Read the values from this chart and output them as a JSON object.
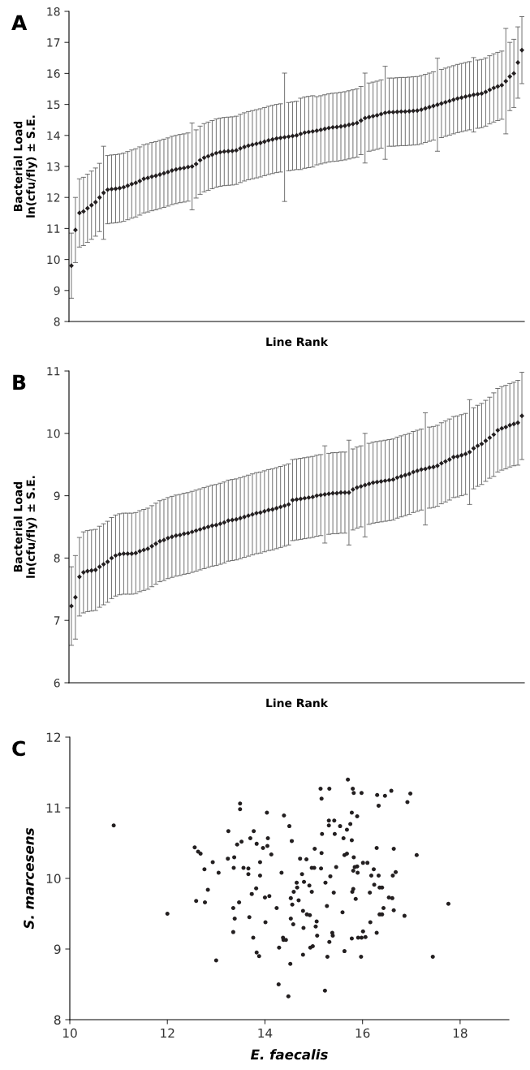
{
  "chart_data": [
    {
      "type": "scatter",
      "title": "A",
      "xlabel": "Line Rank",
      "ylabel": "Bacterial Load\nln(cfu/fly) ± S.E.",
      "marker": "diamond",
      "color": "#231f20",
      "categories": [
        null,
        null,
        null,
        null,
        null,
        null,
        null,
        null,
        null,
        null,
        null,
        null,
        null,
        null,
        null,
        null,
        null,
        null,
        null,
        null,
        null,
        null,
        null,
        null,
        null,
        null,
        null,
        null,
        null,
        null,
        null,
        null,
        null,
        null,
        null,
        null,
        null,
        null,
        null,
        null,
        null,
        null,
        null,
        null,
        null,
        null,
        null,
        null,
        null,
        null,
        null,
        null,
        null,
        null,
        null,
        null,
        null,
        null,
        null,
        null,
        null,
        null,
        null,
        null,
        null,
        null,
        null,
        null,
        null,
        null,
        null,
        null,
        null,
        null,
        null,
        null,
        null,
        null,
        null,
        null,
        null,
        null,
        null,
        null,
        null,
        null,
        null,
        null,
        null,
        null,
        null,
        null,
        null,
        null,
        null,
        null,
        null,
        null,
        null,
        null,
        null,
        null,
        null,
        null,
        null,
        null,
        null,
        null,
        null,
        null,
        null,
        null,
        null
      ],
      "values": [
        9.8,
        10.95,
        11.5,
        11.55,
        11.65,
        11.75,
        11.85,
        12.0,
        12.15,
        12.25,
        12.27,
        12.28,
        12.3,
        12.33,
        12.38,
        12.43,
        12.47,
        12.53,
        12.6,
        12.63,
        12.67,
        12.7,
        12.74,
        12.78,
        12.82,
        12.87,
        12.9,
        12.93,
        12.95,
        12.98,
        13.0,
        13.08,
        13.2,
        13.28,
        13.33,
        13.38,
        13.43,
        13.46,
        13.48,
        13.49,
        13.5,
        13.52,
        13.58,
        13.63,
        13.67,
        13.7,
        13.73,
        13.76,
        13.8,
        13.84,
        13.87,
        13.9,
        13.92,
        13.94,
        13.96,
        13.98,
        14.0,
        14.05,
        14.09,
        14.11,
        14.13,
        14.15,
        14.18,
        14.21,
        14.24,
        14.26,
        14.27,
        14.29,
        14.31,
        14.34,
        14.37,
        14.4,
        14.48,
        14.56,
        14.59,
        14.62,
        14.65,
        14.69,
        14.73,
        14.75,
        14.75,
        14.76,
        14.77,
        14.77,
        14.78,
        14.79,
        14.8,
        14.83,
        14.87,
        14.91,
        14.95,
        14.99,
        15.03,
        15.07,
        15.11,
        15.15,
        15.19,
        15.22,
        15.25,
        15.28,
        15.31,
        15.33,
        15.35,
        15.4,
        15.47,
        15.53,
        15.58,
        15.62,
        15.75,
        15.9,
        16.0,
        16.35,
        16.75
      ],
      "errors": [
        1.05,
        1.05,
        1.1,
        1.1,
        1.1,
        1.1,
        1.1,
        1.1,
        1.5,
        1.1,
        1.1,
        1.1,
        1.1,
        1.1,
        1.1,
        1.1,
        1.1,
        1.1,
        1.1,
        1.1,
        1.1,
        1.1,
        1.1,
        1.1,
        1.1,
        1.1,
        1.1,
        1.1,
        1.1,
        1.1,
        1.4,
        1.1,
        1.1,
        1.1,
        1.1,
        1.1,
        1.1,
        1.1,
        1.1,
        1.1,
        1.1,
        1.1,
        1.1,
        1.1,
        1.1,
        1.1,
        1.1,
        1.1,
        1.1,
        1.1,
        1.1,
        1.1,
        1.1,
        2.07,
        1.1,
        1.1,
        1.1,
        1.15,
        1.15,
        1.15,
        1.15,
        1.1,
        1.1,
        1.1,
        1.1,
        1.1,
        1.1,
        1.1,
        1.1,
        1.1,
        1.1,
        1.1,
        1.1,
        1.45,
        1.1,
        1.1,
        1.1,
        1.1,
        1.5,
        1.1,
        1.1,
        1.1,
        1.1,
        1.1,
        1.1,
        1.1,
        1.1,
        1.1,
        1.1,
        1.1,
        1.1,
        1.5,
        1.1,
        1.1,
        1.1,
        1.1,
        1.1,
        1.1,
        1.1,
        1.1,
        1.2,
        1.1,
        1.1,
        1.1,
        1.1,
        1.1,
        1.1,
        1.1,
        1.7,
        1.1,
        1.1,
        1.15,
        1.08
      ],
      "ylim": [
        8,
        18
      ],
      "yticks": [
        8,
        9,
        10,
        11,
        12,
        13,
        14,
        15,
        16,
        17,
        18
      ]
    },
    {
      "type": "scatter",
      "title": "B",
      "xlabel": "Line Rank",
      "ylabel": "Bacterial Load\nln(cfu/fly) ± S.E.",
      "marker": "diamond",
      "color": "#231f20",
      "categories": [
        null,
        null,
        null,
        null,
        null,
        null,
        null,
        null,
        null,
        null,
        null,
        null,
        null,
        null,
        null,
        null,
        null,
        null,
        null,
        null,
        null,
        null,
        null,
        null,
        null,
        null,
        null,
        null,
        null,
        null,
        null,
        null,
        null,
        null,
        null,
        null,
        null,
        null,
        null,
        null,
        null,
        null,
        null,
        null,
        null,
        null,
        null,
        null,
        null,
        null,
        null,
        null,
        null,
        null,
        null,
        null,
        null,
        null,
        null,
        null,
        null,
        null,
        null,
        null,
        null,
        null,
        null,
        null,
        null,
        null,
        null,
        null,
        null,
        null,
        null,
        null,
        null,
        null,
        null,
        null,
        null,
        null,
        null,
        null,
        null,
        null,
        null,
        null,
        null,
        null,
        null,
        null,
        null,
        null,
        null,
        null,
        null,
        null,
        null,
        null,
        null,
        null,
        null,
        null,
        null,
        null,
        null,
        null,
        null,
        null,
        null,
        null,
        null
      ],
      "values": [
        7.23,
        7.37,
        7.7,
        7.77,
        7.79,
        7.8,
        7.81,
        7.86,
        7.9,
        7.94,
        8.0,
        8.04,
        8.06,
        8.07,
        8.07,
        8.07,
        8.08,
        8.11,
        8.13,
        8.15,
        8.19,
        8.23,
        8.27,
        8.29,
        8.32,
        8.34,
        8.36,
        8.37,
        8.39,
        8.4,
        8.42,
        8.44,
        8.46,
        8.48,
        8.5,
        8.52,
        8.53,
        8.55,
        8.57,
        8.6,
        8.61,
        8.62,
        8.64,
        8.66,
        8.68,
        8.7,
        8.72,
        8.73,
        8.75,
        8.77,
        8.78,
        8.8,
        8.82,
        8.84,
        8.86,
        8.93,
        8.94,
        8.95,
        8.96,
        8.97,
        8.98,
        9.0,
        9.01,
        9.02,
        9.03,
        9.04,
        9.04,
        9.05,
        9.05,
        9.05,
        9.1,
        9.13,
        9.15,
        9.17,
        9.19,
        9.21,
        9.22,
        9.23,
        9.24,
        9.25,
        9.26,
        9.29,
        9.31,
        9.33,
        9.35,
        9.38,
        9.4,
        9.42,
        9.43,
        9.45,
        9.46,
        9.48,
        9.52,
        9.55,
        9.58,
        9.62,
        9.63,
        9.65,
        9.67,
        9.7,
        9.76,
        9.8,
        9.83,
        9.88,
        9.93,
        9.98,
        10.05,
        10.08,
        10.1,
        10.13,
        10.15,
        10.17,
        10.28
      ],
      "errors": [
        0.63,
        0.67,
        0.63,
        0.65,
        0.65,
        0.65,
        0.65,
        0.65,
        0.65,
        0.65,
        0.65,
        0.65,
        0.65,
        0.65,
        0.65,
        0.65,
        0.65,
        0.65,
        0.65,
        0.65,
        0.65,
        0.65,
        0.65,
        0.65,
        0.65,
        0.65,
        0.65,
        0.65,
        0.65,
        0.65,
        0.65,
        0.65,
        0.65,
        0.65,
        0.65,
        0.65,
        0.65,
        0.65,
        0.65,
        0.65,
        0.65,
        0.65,
        0.65,
        0.65,
        0.65,
        0.65,
        0.65,
        0.65,
        0.65,
        0.65,
        0.65,
        0.65,
        0.65,
        0.65,
        0.65,
        0.65,
        0.65,
        0.65,
        0.65,
        0.65,
        0.65,
        0.65,
        0.65,
        0.78,
        0.65,
        0.65,
        0.65,
        0.65,
        0.65,
        0.84,
        0.65,
        0.65,
        0.65,
        0.83,
        0.65,
        0.65,
        0.65,
        0.65,
        0.65,
        0.65,
        0.65,
        0.65,
        0.65,
        0.65,
        0.65,
        0.65,
        0.65,
        0.65,
        0.9,
        0.65,
        0.65,
        0.65,
        0.65,
        0.65,
        0.65,
        0.65,
        0.65,
        0.65,
        0.65,
        0.84,
        0.65,
        0.65,
        0.65,
        0.65,
        0.65,
        0.67,
        0.67,
        0.67,
        0.67,
        0.67,
        0.67,
        0.68,
        0.7
      ],
      "ylim": [
        6,
        11
      ],
      "yticks": [
        6,
        7,
        8,
        9,
        10,
        11
      ]
    },
    {
      "type": "scatter",
      "title": "C",
      "xlabel": "E. faecalis",
      "ylabel": "S. marcesens",
      "marker": "circle",
      "color": "#231f20",
      "x": [
        10.9,
        12.0,
        13.0,
        13.49,
        13.49,
        14.04,
        14.39,
        14.5,
        13.25,
        13.77,
        13.7,
        14.06,
        14.55,
        13.43,
        13.52,
        13.83,
        13.96,
        14.05,
        14.13,
        12.56,
        12.63,
        12.68,
        12.93,
        13.24,
        13.37,
        14.72,
        14.85,
        12.76,
        13.05,
        13.36,
        13.56,
        13.66,
        13.66,
        13.9,
        13.9,
        14.34,
        14.76,
        14.65,
        14.8,
        14.66,
        14.59,
        12.83,
        13.82,
        13.73,
        14.0,
        14.09,
        14.53,
        14.69,
        14.56,
        12.59,
        12.77,
        13.47,
        13.35,
        14.24,
        14.78,
        14.86,
        13.38,
        13.68,
        14.01,
        14.53,
        14.58,
        14.79,
        13.35,
        13.76,
        14.37,
        14.38,
        14.43,
        14.29,
        13.83,
        13.88,
        14.78,
        14.52,
        14.92,
        15.7,
        15.14,
        15.32,
        15.8,
        15.82,
        15.98,
        16.3,
        16.46,
        16.59,
        16.98,
        16.92,
        16.33,
        15.16,
        15.78,
        15.89,
        15.31,
        15.42,
        15.31,
        15.54,
        15.75,
        15.68,
        15.17,
        15.43,
        15.61,
        15.78,
        15.02,
        15.16,
        15.63,
        15.68,
        15.82,
        16.29,
        16.64,
        17.11,
        14.96,
        15.01,
        15.15,
        15.46,
        15.84,
        15.89,
        15.81,
        15.9,
        16.01,
        16.1,
        16.23,
        16.18,
        16.33,
        16.62,
        16.68,
        15.34,
        15.24,
        14.91,
        14.96,
        15.41,
        15.81,
        15.79,
        16.24,
        16.35,
        16.4,
        16.15,
        15.86,
        16.54,
        16.61,
        15.27,
        16.43,
        16.64,
        16.35,
        16.4,
        16.86,
        17.76,
        15.59,
        15.06,
        15.04,
        16.16,
        15.38,
        15.39,
        15.07,
        16.01,
        16.29,
        15.78,
        15.91,
        15.98,
        16.06,
        15.32,
        14.93,
        14.98,
        15.63,
        15.28,
        15.97,
        17.44,
        14.28,
        14.48,
        15.23
      ],
      "values": [
        10.75,
        9.5,
        8.84,
        11.06,
        10.98,
        10.93,
        10.89,
        10.74,
        10.67,
        10.67,
        10.57,
        10.57,
        10.53,
        10.48,
        10.52,
        10.49,
        10.43,
        10.46,
        10.34,
        10.44,
        10.38,
        10.35,
        10.23,
        10.28,
        10.3,
        10.28,
        10.27,
        10.13,
        10.08,
        10.15,
        10.15,
        10.14,
        10.06,
        10.23,
        10.04,
        10.08,
        10.06,
        9.94,
        9.95,
        9.87,
        9.81,
        9.84,
        9.86,
        9.78,
        9.73,
        9.75,
        9.72,
        9.69,
        9.63,
        9.68,
        9.66,
        9.66,
        9.58,
        9.58,
        9.54,
        9.49,
        9.43,
        9.45,
        9.38,
        9.43,
        9.35,
        9.3,
        9.24,
        9.16,
        9.16,
        9.13,
        9.13,
        9.02,
        8.95,
        8.9,
        8.92,
        8.79,
        9.48,
        11.4,
        11.27,
        11.27,
        11.27,
        11.21,
        11.21,
        11.18,
        11.17,
        11.24,
        11.2,
        11.08,
        11.03,
        11.13,
        10.93,
        10.88,
        10.82,
        10.82,
        10.75,
        10.74,
        10.77,
        10.69,
        10.63,
        10.63,
        10.57,
        10.54,
        10.42,
        10.36,
        10.33,
        10.35,
        10.3,
        10.43,
        10.42,
        10.33,
        10.15,
        10.15,
        10.14,
        10.16,
        10.16,
        10.17,
        10.11,
        10.08,
        10.22,
        10.22,
        10.13,
        10.04,
        10.04,
        10.04,
        10.09,
        10.03,
        9.94,
        9.9,
        9.81,
        9.8,
        9.85,
        9.81,
        9.91,
        9.87,
        9.87,
        9.8,
        9.71,
        9.73,
        9.72,
        9.61,
        9.58,
        9.55,
        9.49,
        9.49,
        9.47,
        9.64,
        9.52,
        9.39,
        9.32,
        9.38,
        9.23,
        9.19,
        9.19,
        9.25,
        9.23,
        9.15,
        9.16,
        9.16,
        9.17,
        9.1,
        9.02,
        9.04,
        8.97,
        8.89,
        8.89,
        8.89,
        8.5,
        8.33,
        8.41
      ],
      "xlim": [
        10,
        19
      ],
      "xticks": [
        10,
        12,
        14,
        16,
        18
      ],
      "ylim": [
        8,
        12
      ],
      "yticks": [
        8,
        9,
        10,
        11,
        12
      ]
    }
  ]
}
